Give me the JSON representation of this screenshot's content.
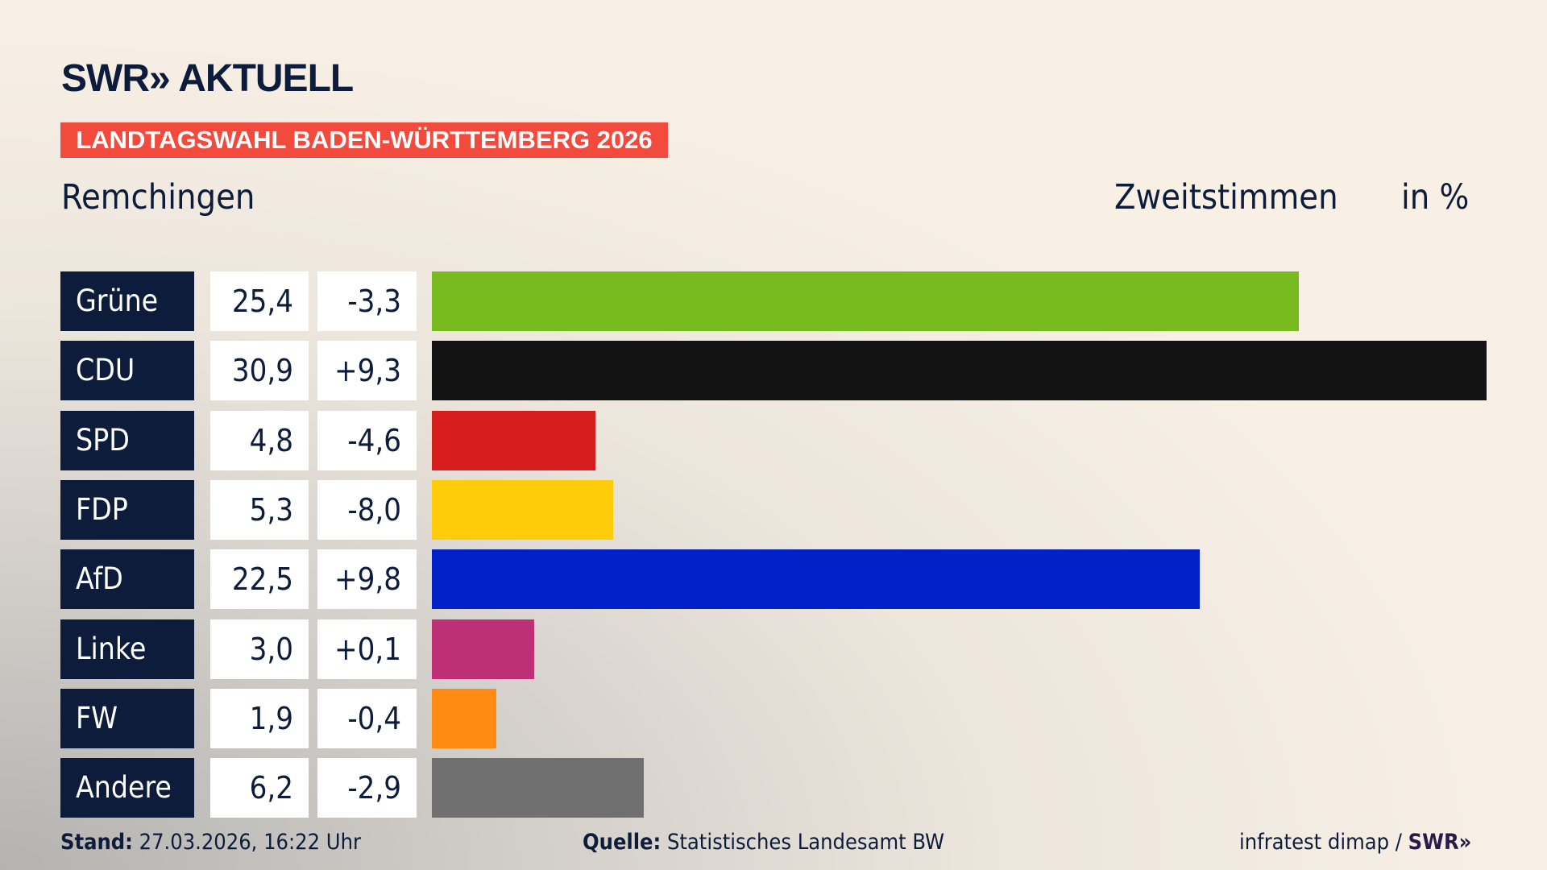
{
  "header": {
    "logo": "SWR» AKTUELL",
    "banner": "LANDTAGSWAHL BADEN-WÜRTTEMBERG 2026",
    "place": "Remchingen",
    "metric": "Zweitstimmen",
    "unit": "in %"
  },
  "chart_data": {
    "type": "bar",
    "orientation": "horizontal",
    "title": "Remchingen",
    "xlabel": "Zweitstimmen in %",
    "categories": [
      "Grüne",
      "CDU",
      "SPD",
      "FDP",
      "AfD",
      "Linke",
      "FW",
      "Andere"
    ],
    "values": [
      25.4,
      30.9,
      4.8,
      5.3,
      22.5,
      3.0,
      1.9,
      6.2
    ],
    "value_labels": [
      "25,4",
      "30,9",
      "4,8",
      "5,3",
      "22,5",
      "3,0",
      "1,9",
      "6,2"
    ],
    "diff_labels": [
      "-3,3",
      "+9,3",
      "-4,6",
      "-8,0",
      "+9,8",
      "+0,1",
      "-0,4",
      "-2,9"
    ],
    "diffs": [
      -3.3,
      9.3,
      -4.6,
      -8.0,
      9.8,
      0.1,
      -0.4,
      -2.9
    ],
    "colors": [
      "#78bb1e",
      "#121212",
      "#d61e1e",
      "#ffcc0a",
      "#0020c8",
      "#be3075",
      "#ff8a14",
      "#707070"
    ],
    "xlim": [
      0,
      30.9
    ],
    "grid": false
  },
  "footer": {
    "stand_label": "Stand:",
    "stand_value": "27.03.2026, 16:22 Uhr",
    "quelle_label": "Quelle:",
    "quelle_value": "Statistisches Landesamt BW",
    "credit": "infratest dimap / ",
    "credit_brand": "SWR»"
  }
}
